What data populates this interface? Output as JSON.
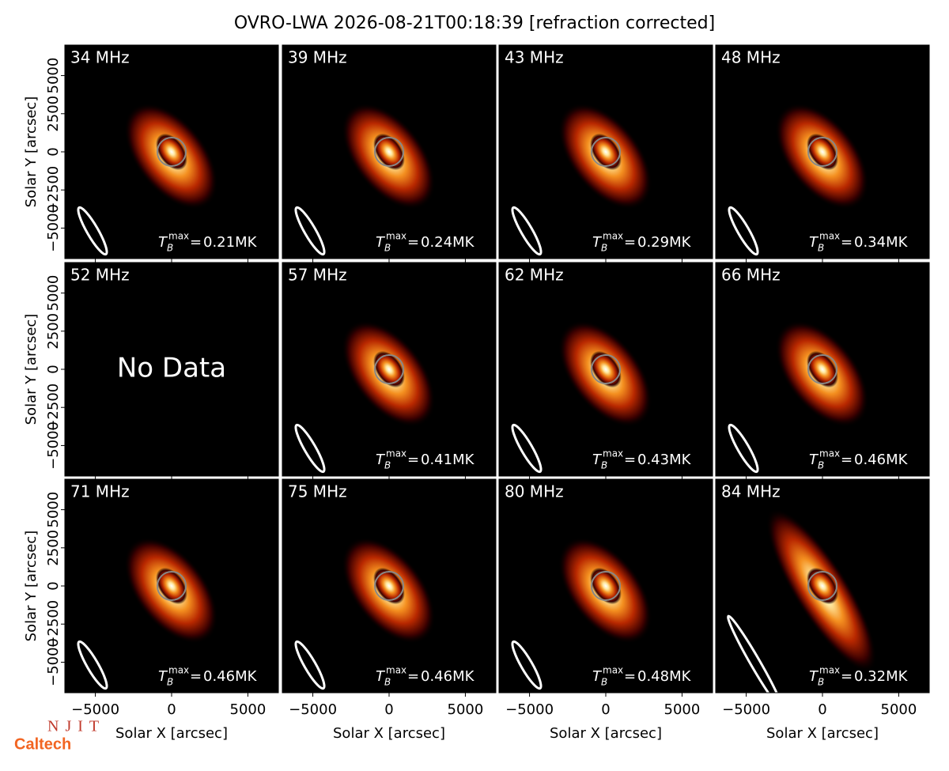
{
  "chart_data": {
    "type": "image-grid",
    "title": "OVRO-LWA 2026-08-21T00:18:39 [refraction corrected]",
    "xlabel": "Solar X [arcsec]",
    "ylabel": "Solar Y [arcsec]",
    "xlim": [
      -7000,
      7000
    ],
    "ylim": [
      -7000,
      7000
    ],
    "xticks": [
      {
        "value": -5000,
        "label": "−5000"
      },
      0,
      5000
    ],
    "yticks": [
      {
        "value": -5000,
        "label": "−5000"
      },
      {
        "value": -2500,
        "label": "−2500"
      },
      0,
      2500,
      5000
    ],
    "tb_symbol": "T",
    "tb_subscript": "B",
    "tb_superscript": "max",
    "tb_equals": "=",
    "panels": [
      {
        "label": "34 MHz",
        "tb_max": "0.21MK"
      },
      {
        "label": "39 MHz",
        "tb_max": "0.24MK"
      },
      {
        "label": "43 MHz",
        "tb_max": "0.29MK"
      },
      {
        "label": "48 MHz",
        "tb_max": "0.34MK"
      },
      {
        "label": "52 MHz",
        "note": "No Data"
      },
      {
        "label": "57 MHz",
        "tb_max": "0.41MK"
      },
      {
        "label": "62 MHz",
        "tb_max": "0.43MK"
      },
      {
        "label": "66 MHz",
        "tb_max": "0.46MK"
      },
      {
        "label": "71 MHz",
        "tb_max": "0.46MK"
      },
      {
        "label": "75 MHz",
        "tb_max": "0.46MK"
      },
      {
        "label": "80 MHz",
        "tb_max": "0.48MK"
      },
      {
        "label": "84 MHz",
        "tb_max": "0.32MK"
      }
    ]
  },
  "logos": [
    "NJIT",
    "Caltech"
  ]
}
